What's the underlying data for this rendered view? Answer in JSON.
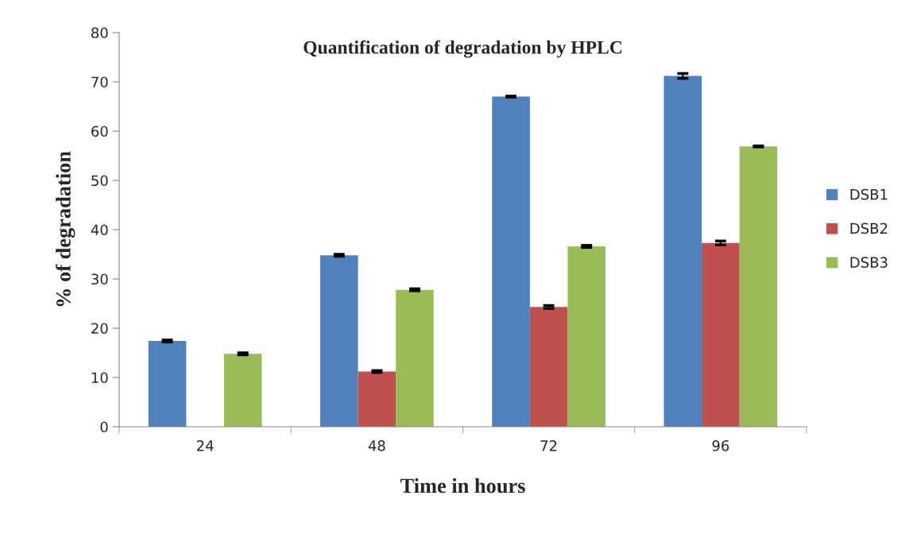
{
  "chart_data": {
    "type": "bar",
    "title": "Quantification of degradation by HPLC",
    "xlabel": "Time in hours",
    "ylabel": "% of degradation",
    "categories": [
      "24",
      "48",
      "72",
      "96"
    ],
    "series": [
      {
        "name": "DSB1",
        "color": "#4f81bd",
        "values": [
          17.4,
          34.8,
          67.0,
          71.2
        ],
        "errors": [
          0.2,
          0.2,
          0.1,
          0.5
        ]
      },
      {
        "name": "DSB2",
        "color": "#c0504d",
        "values": [
          0,
          11.2,
          24.3,
          37.3
        ],
        "errors": [
          null,
          0.2,
          0.3,
          0.4
        ]
      },
      {
        "name": "DSB3",
        "color": "#9bbb59",
        "values": [
          14.8,
          27.8,
          36.6,
          56.9
        ],
        "errors": [
          0.2,
          0.2,
          0.2,
          0.1
        ]
      }
    ],
    "ylim": [
      0,
      80
    ],
    "yticks": [
      0,
      10,
      20,
      30,
      40,
      50,
      60,
      70,
      80
    ],
    "grid": false,
    "legend": "right"
  }
}
